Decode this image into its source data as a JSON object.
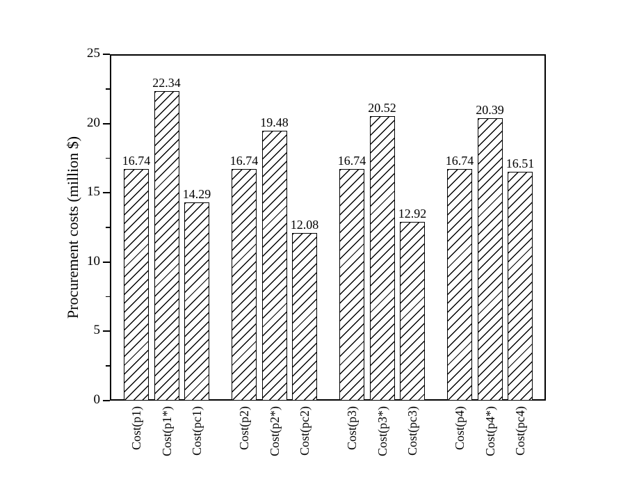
{
  "figure": {
    "background": "#ffffff",
    "line_color": "#000000",
    "text_color": "#000000"
  },
  "chart_data": {
    "type": "bar",
    "title": "",
    "xlabel": "",
    "ylabel": "Procurement costs (million $)",
    "ylim": [
      0,
      25
    ],
    "yticks": [
      0,
      5,
      10,
      15,
      20,
      25
    ],
    "y_minor_ticks": [
      2.5,
      7.5,
      12.5,
      17.5,
      22.5
    ],
    "grid": false,
    "legend": null,
    "group_size": 3,
    "categories": [
      "Cost(p1)",
      "Cost(p1*)",
      "Cost(pc1)",
      "Cost(p2)",
      "Cost(p2*)",
      "Cost(pc2)",
      "Cost(p3)",
      "Cost(p3*)",
      "Cost(pc3)",
      "Cost(p4)",
      "Cost(p4*)",
      "Cost(pc4)"
    ],
    "values": [
      16.74,
      22.34,
      14.29,
      16.74,
      19.48,
      12.08,
      16.74,
      20.52,
      12.92,
      16.74,
      20.39,
      16.51
    ],
    "value_labels": [
      "16.74",
      "22.34",
      "14.29",
      "16.74",
      "19.48",
      "12.08",
      "16.74",
      "20.52",
      "12.92",
      "16.74",
      "20.39",
      "16.51"
    ],
    "bar_style": {
      "fill": "#ffffff",
      "edge": "#000000",
      "hatch": "forward-diagonal"
    }
  }
}
